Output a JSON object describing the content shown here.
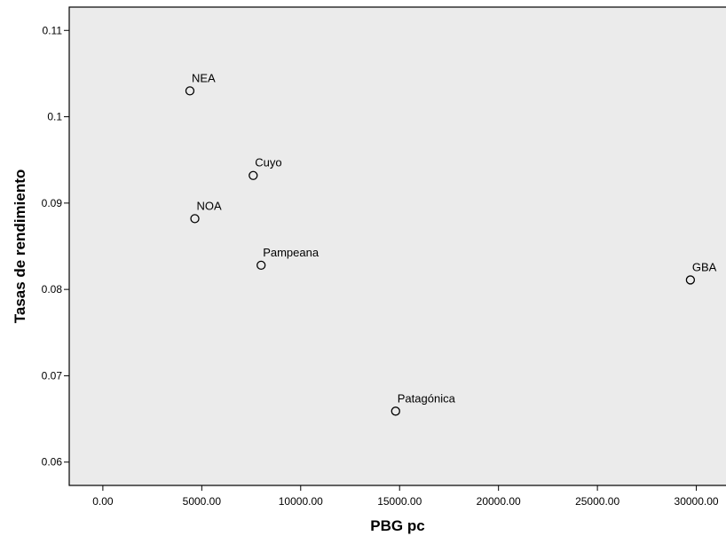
{
  "chart_data": {
    "type": "scatter",
    "title": "",
    "xlabel": "PBG pc",
    "ylabel": "Tasas de rendimiento",
    "xlim": [
      -1700,
      31500
    ],
    "ylim": [
      0.0573,
      0.1127
    ],
    "x_ticks": [
      0,
      5000,
      10000,
      15000,
      20000,
      25000,
      30000
    ],
    "x_tick_labels": [
      "0.00",
      "5000.00",
      "10000.00",
      "15000.00",
      "20000.00",
      "25000.00",
      "30000.00"
    ],
    "y_ticks": [
      0.06,
      0.07,
      0.08,
      0.09,
      0.1,
      0.11
    ],
    "y_tick_labels": [
      "0.06",
      "0.07",
      "0.08",
      "0.09",
      "0.1",
      "0.11"
    ],
    "grid": false,
    "plot_background": "#ebebeb",
    "marker": "open-circle",
    "points": [
      {
        "label": "NEA",
        "x": 4400,
        "y": 0.103
      },
      {
        "label": "Cuyo",
        "x": 7600,
        "y": 0.0932
      },
      {
        "label": "NOA",
        "x": 4650,
        "y": 0.0882
      },
      {
        "label": "Pampeana",
        "x": 8000,
        "y": 0.0828
      },
      {
        "label": "GBA",
        "x": 29700,
        "y": 0.0811
      },
      {
        "label": "Patagónica",
        "x": 14800,
        "y": 0.0659
      }
    ]
  }
}
